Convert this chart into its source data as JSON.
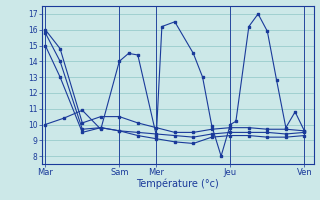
{
  "xlabel": "Température (°c)",
  "background_color": "#cce8e8",
  "grid_color": "#99cccc",
  "line_color": "#1a3a9a",
  "ylim": [
    7.5,
    17.5
  ],
  "yticks": [
    8,
    9,
    10,
    11,
    12,
    13,
    14,
    15,
    16,
    17
  ],
  "xtick_positions": [
    0,
    4,
    6,
    10,
    14
  ],
  "xtick_labels": [
    "Mar",
    "Sam",
    "Mer",
    "Jeu",
    "Ven"
  ],
  "xlim": [
    -0.2,
    14.5
  ],
  "lines": {
    "x1": [
      0,
      0.8,
      2,
      3,
      4,
      5,
      6,
      7,
      8,
      9,
      10,
      11,
      12,
      13,
      14
    ],
    "y1": [
      16.0,
      14.8,
      10.1,
      10.5,
      10.5,
      10.1,
      9.8,
      9.5,
      9.5,
      9.7,
      9.8,
      9.8,
      9.7,
      9.7,
      9.6
    ],
    "x2": [
      0,
      0.8,
      2,
      3,
      4,
      5,
      6,
      7,
      8,
      9,
      10,
      11,
      12,
      13,
      14
    ],
    "y2": [
      15.8,
      14.0,
      9.7,
      9.8,
      9.6,
      9.5,
      9.4,
      9.3,
      9.2,
      9.4,
      9.5,
      9.5,
      9.5,
      9.4,
      9.5
    ],
    "x3": [
      0,
      0.8,
      2,
      3,
      4,
      5,
      6,
      7,
      8,
      9,
      10,
      11,
      12,
      13,
      14
    ],
    "y3": [
      15.0,
      13.0,
      9.5,
      9.8,
      9.6,
      9.3,
      9.1,
      8.9,
      8.8,
      9.2,
      9.3,
      9.3,
      9.2,
      9.2,
      9.3
    ],
    "x4": [
      0,
      1,
      2,
      3,
      4,
      4.5,
      5,
      6,
      6.3,
      7,
      8,
      8.5,
      9,
      9.5,
      10,
      10.3,
      11,
      11.5,
      12,
      12.5,
      13,
      13.5,
      14
    ],
    "y4": [
      10.0,
      10.4,
      10.9,
      9.7,
      14.0,
      14.5,
      14.4,
      9.3,
      16.2,
      16.5,
      14.5,
      13.0,
      9.9,
      8.0,
      10.0,
      10.2,
      16.2,
      17.0,
      15.9,
      12.8,
      9.8,
      10.8,
      9.6
    ]
  }
}
